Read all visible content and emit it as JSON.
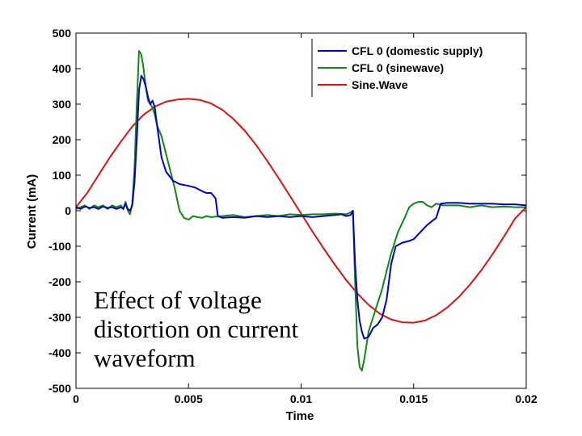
{
  "chart_data": {
    "type": "line",
    "xlabel": "Time",
    "ylabel": "Current (mA)",
    "xlim": [
      0,
      0.02
    ],
    "ylim": [
      -500,
      500
    ],
    "xticks": [
      0,
      0.005,
      0.01,
      0.015,
      0.02
    ],
    "xtick_labels": [
      "0",
      "0.005",
      "0.01",
      "0.015",
      "0.02"
    ],
    "yticks": [
      500,
      400,
      300,
      200,
      100,
      0,
      -100,
      -200,
      -300,
      -400,
      -500
    ],
    "ytick_labels": [
      "500",
      "400",
      "300",
      "200",
      "100",
      "0",
      "-100",
      "-200",
      "-300",
      "-400",
      "-500"
    ],
    "legend_position": "top-right",
    "annotation": "Effect of voltage distortion on current waveform",
    "annotation_lines": [
      "Effect of voltage",
      "distortion on current",
      "waveform"
    ],
    "series": [
      {
        "name": "CFL 0 (domestic supply)",
        "color": "#0000cc",
        "x": [
          0,
          0.0002,
          0.0004,
          0.0006,
          0.0008,
          0.001,
          0.0012,
          0.0014,
          0.0016,
          0.0018,
          0.002,
          0.0021,
          0.0022,
          0.0023,
          0.0024,
          0.0025,
          0.0026,
          0.0027,
          0.0028,
          0.0029,
          0.003,
          0.0031,
          0.0032,
          0.0033,
          0.0034,
          0.0035,
          0.0036,
          0.0038,
          0.004,
          0.0043,
          0.0046,
          0.005,
          0.0053,
          0.0056,
          0.0058,
          0.006,
          0.0062,
          0.0063,
          0.0065,
          0.007,
          0.0075,
          0.008,
          0.0085,
          0.009,
          0.0095,
          0.01,
          0.0105,
          0.011,
          0.0115,
          0.0118,
          0.012,
          0.0122,
          0.0123,
          0.0124,
          0.0125,
          0.0126,
          0.0127,
          0.0128,
          0.013,
          0.0132,
          0.0134,
          0.0136,
          0.0138,
          0.014,
          0.0142,
          0.0145,
          0.0148,
          0.015,
          0.0153,
          0.0156,
          0.0158,
          0.016,
          0.0162,
          0.0165,
          0.017,
          0.0175,
          0.018,
          0.0185,
          0.019,
          0.0195,
          0.02
        ],
        "y": [
          10,
          5,
          12,
          8,
          10,
          5,
          12,
          8,
          10,
          5,
          10,
          5,
          20,
          5,
          0,
          15,
          80,
          200,
          340,
          380,
          370,
          350,
          320,
          300,
          310,
          290,
          240,
          150,
          110,
          85,
          75,
          70,
          65,
          55,
          50,
          50,
          35,
          -15,
          -20,
          -18,
          -20,
          -15,
          -18,
          -15,
          -18,
          -15,
          -18,
          -15,
          -12,
          -10,
          -15,
          -12,
          0,
          -150,
          -250,
          -310,
          -340,
          -360,
          -355,
          -330,
          -320,
          -300,
          -250,
          -150,
          -100,
          -90,
          -85,
          -80,
          -60,
          -40,
          -30,
          -20,
          20,
          22,
          22,
          20,
          20,
          20,
          18,
          18,
          15
        ]
      },
      {
        "name": "CFL 0 (sinewave)",
        "color": "#118811",
        "x": [
          0,
          0.0002,
          0.0004,
          0.0006,
          0.0008,
          0.001,
          0.0012,
          0.0014,
          0.0016,
          0.0018,
          0.002,
          0.0021,
          0.0022,
          0.0023,
          0.0024,
          0.0025,
          0.0026,
          0.0027,
          0.0028,
          0.0029,
          0.003,
          0.0031,
          0.0032,
          0.0033,
          0.0034,
          0.0035,
          0.0036,
          0.0038,
          0.004,
          0.0042,
          0.0044,
          0.0046,
          0.0048,
          0.005,
          0.0052,
          0.0054,
          0.0056,
          0.0058,
          0.006,
          0.0065,
          0.007,
          0.0075,
          0.008,
          0.0085,
          0.009,
          0.0095,
          0.01,
          0.0105,
          0.011,
          0.0115,
          0.012,
          0.0122,
          0.0123,
          0.0124,
          0.0125,
          0.0126,
          0.0127,
          0.0128,
          0.0129,
          0.013,
          0.0132,
          0.0134,
          0.0136,
          0.0138,
          0.014,
          0.0143,
          0.0146,
          0.0148,
          0.015,
          0.0152,
          0.0154,
          0.0156,
          0.0158,
          0.016,
          0.0163,
          0.0166,
          0.017,
          0.0175,
          0.018,
          0.0185,
          0.019,
          0.0195,
          0.02
        ],
        "y": [
          5,
          10,
          15,
          5,
          15,
          10,
          15,
          5,
          15,
          10,
          15,
          5,
          25,
          0,
          -10,
          20,
          120,
          300,
          450,
          440,
          400,
          350,
          310,
          300,
          290,
          270,
          240,
          210,
          160,
          110,
          60,
          0,
          -20,
          -25,
          -15,
          -18,
          -20,
          -15,
          -18,
          -15,
          -12,
          -18,
          -15,
          -12,
          -15,
          -10,
          -12,
          -10,
          -10,
          -8,
          -10,
          -5,
          0,
          -200,
          -380,
          -440,
          -450,
          -420,
          -380,
          -340,
          -300,
          -260,
          -220,
          -170,
          -120,
          -60,
          -20,
          10,
          20,
          25,
          25,
          15,
          10,
          20,
          15,
          15,
          15,
          10,
          15,
          10,
          12,
          10,
          10
        ]
      },
      {
        "name": "Sine.Wave",
        "color": "#dd1111",
        "x": [
          0,
          0.0005,
          0.001,
          0.0015,
          0.002,
          0.0025,
          0.003,
          0.0035,
          0.004,
          0.0045,
          0.005,
          0.0055,
          0.006,
          0.0065,
          0.007,
          0.0075,
          0.008,
          0.0085,
          0.009,
          0.0095,
          0.01,
          0.0105,
          0.011,
          0.0115,
          0.012,
          0.0125,
          0.013,
          0.0135,
          0.014,
          0.0145,
          0.015,
          0.0155,
          0.016,
          0.0165,
          0.017,
          0.0175,
          0.018,
          0.0185,
          0.019,
          0.0195,
          0.02
        ],
        "y": [
          10,
          50,
          100,
          150,
          195,
          237,
          270,
          293,
          307,
          313,
          315,
          312,
          302,
          284,
          258,
          225,
          185,
          140,
          92,
          42,
          -8,
          -58,
          -106,
          -152,
          -195,
          -233,
          -265,
          -290,
          -306,
          -314,
          -315,
          -309,
          -294,
          -272,
          -243,
          -208,
          -168,
          -123,
          -74,
          -22,
          10
        ]
      }
    ]
  }
}
